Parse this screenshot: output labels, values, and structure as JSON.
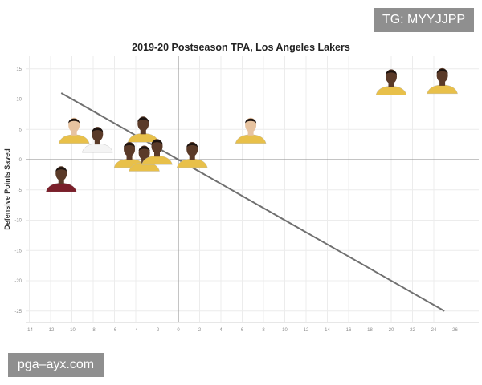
{
  "watermarks": {
    "top_right": "TG: MYYJJPP",
    "bottom_left": "pga–ayx.com"
  },
  "colors": {
    "background": "#ffffff",
    "grid": "#ececec",
    "axis_line": "#8a8a8a",
    "trend_line": "#707070",
    "tick_label": "#8c8c8c",
    "lakers_jersey": "#e8c04a",
    "cavaliers_jersey": "#7a1f2a",
    "skin_dark": "#5a3a28",
    "skin_light": "#e7c3a0"
  },
  "chart_data": {
    "type": "scatter",
    "title": "2019-20 Postseason TPA, Los Angeles Lakers",
    "xlabel": "",
    "ylabel": "Defensive Points Saved",
    "xlim": [
      -15,
      26
    ],
    "ylim": [
      -27,
      17
    ],
    "xticks": [
      -14,
      -12,
      -10,
      -8,
      -6,
      -4,
      -2,
      0,
      2,
      4,
      6,
      8,
      10,
      12,
      14,
      16,
      18,
      20,
      22,
      24,
      26
    ],
    "yticks": [
      -25,
      -20,
      -15,
      -10,
      -5,
      0,
      5,
      10,
      15
    ],
    "grid": true,
    "reference_lines": {
      "x": 0,
      "y": 0
    },
    "trend_line": {
      "x": [
        -11,
        25
      ],
      "y": [
        11,
        -25
      ]
    },
    "points": [
      {
        "x": 20.0,
        "y": 12.0,
        "marker": "player-headshot",
        "jersey": "lakers",
        "skin": "dark"
      },
      {
        "x": 24.8,
        "y": 12.2,
        "marker": "player-headshot",
        "jersey": "lakers",
        "skin": "dark"
      },
      {
        "x": -9.8,
        "y": 4.0,
        "marker": "player-headshot",
        "jersey": "lakers",
        "skin": "light"
      },
      {
        "x": -7.6,
        "y": 2.5,
        "marker": "player-headshot",
        "jersey": "white",
        "skin": "dark"
      },
      {
        "x": -3.3,
        "y": 4.2,
        "marker": "player-headshot",
        "jersey": "lakers",
        "skin": "dark"
      },
      {
        "x": 6.8,
        "y": 4.0,
        "marker": "player-headshot",
        "jersey": "lakers",
        "skin": "light"
      },
      {
        "x": -11.0,
        "y": -4.0,
        "marker": "player-headshot",
        "jersey": "cavaliers",
        "skin": "dark"
      },
      {
        "x": -4.6,
        "y": 0.0,
        "marker": "player-headshot",
        "jersey": "lakers",
        "skin": "dark"
      },
      {
        "x": -3.2,
        "y": -0.6,
        "marker": "player-headshot",
        "jersey": "lakers",
        "skin": "dark"
      },
      {
        "x": -2.0,
        "y": 0.5,
        "marker": "player-headshot",
        "jersey": "lakers",
        "skin": "dark"
      },
      {
        "x": 1.3,
        "y": 0.0,
        "marker": "player-headshot",
        "jersey": "lakers",
        "skin": "dark"
      }
    ]
  }
}
